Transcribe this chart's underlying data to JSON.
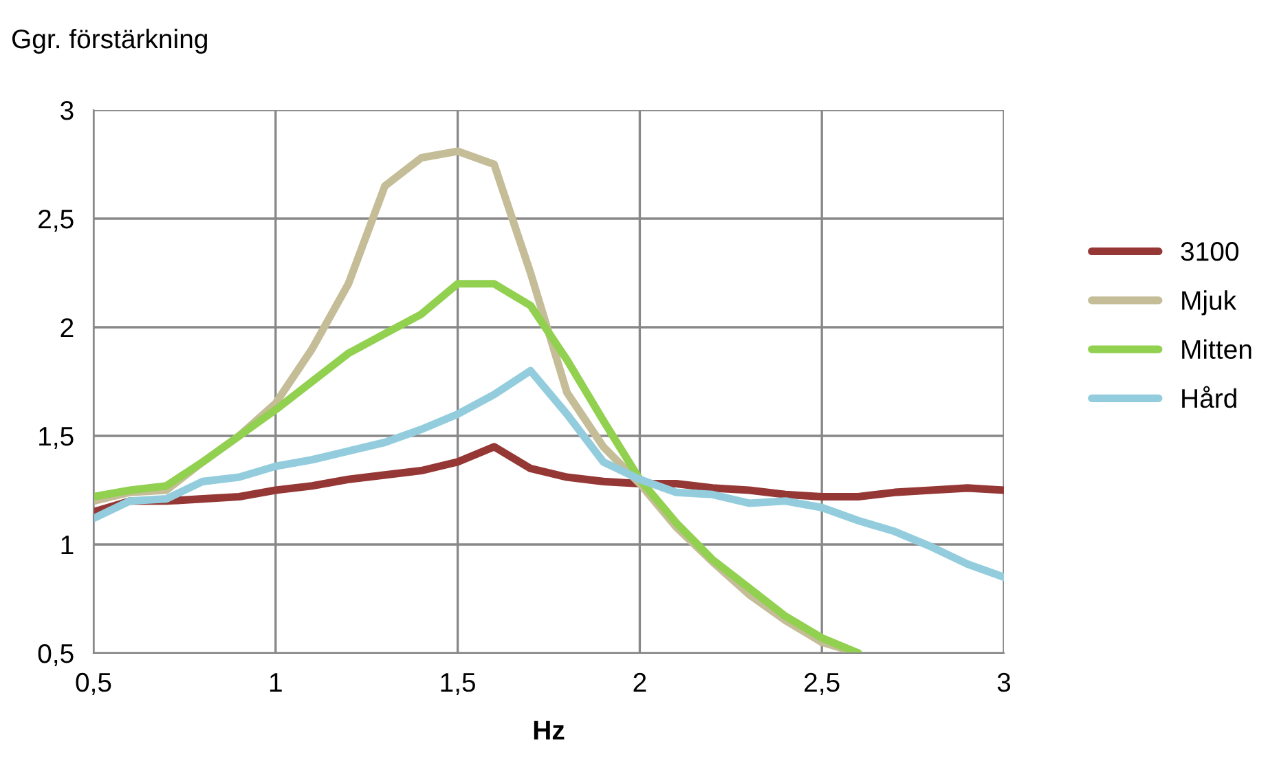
{
  "chart_data": {
    "type": "line",
    "ylabel": "Ggr. förstärkning",
    "xlabel": "Hz",
    "x": [
      0.5,
      0.6,
      0.7,
      0.8,
      0.9,
      1.0,
      1.1,
      1.2,
      1.3,
      1.4,
      1.5,
      1.6,
      1.7,
      1.8,
      1.9,
      2.0,
      2.1,
      2.2,
      2.3,
      2.4,
      2.5,
      2.6,
      2.7,
      2.8,
      2.9,
      3.0
    ],
    "series": [
      {
        "name": "3100",
        "color": "#953735",
        "values": [
          1.15,
          1.2,
          1.2,
          1.21,
          1.22,
          1.25,
          1.27,
          1.3,
          1.32,
          1.34,
          1.38,
          1.45,
          1.35,
          1.31,
          1.29,
          1.28,
          1.28,
          1.26,
          1.25,
          1.23,
          1.22,
          1.22,
          1.24,
          1.25,
          1.26,
          1.25
        ]
      },
      {
        "name": "Mjuk",
        "color": "#c4bd97",
        "values": [
          1.2,
          1.24,
          1.25,
          1.38,
          1.5,
          1.65,
          1.9,
          2.2,
          2.65,
          2.78,
          2.81,
          2.75,
          2.25,
          1.7,
          1.45,
          1.28,
          1.08,
          0.92,
          0.77,
          0.65,
          0.55,
          0.5,
          null,
          null,
          null,
          null
        ]
      },
      {
        "name": "Mitten",
        "color": "#92d050",
        "values": [
          1.22,
          1.25,
          1.27,
          1.38,
          1.5,
          1.62,
          1.75,
          1.88,
          1.97,
          2.06,
          2.2,
          2.2,
          2.1,
          1.85,
          1.57,
          1.3,
          1.1,
          0.93,
          0.8,
          0.67,
          0.57,
          0.5,
          null,
          null,
          null,
          null
        ]
      },
      {
        "name": "Hård",
        "color": "#93cddd",
        "values": [
          1.12,
          1.2,
          1.21,
          1.29,
          1.31,
          1.36,
          1.39,
          1.43,
          1.47,
          1.53,
          1.6,
          1.69,
          1.8,
          1.6,
          1.38,
          1.3,
          1.24,
          1.23,
          1.19,
          1.2,
          1.17,
          1.11,
          1.06,
          0.99,
          0.91,
          0.85
        ]
      }
    ],
    "xlim": [
      0.5,
      3
    ],
    "xticks": [
      {
        "value": 0.5,
        "label": "0,5"
      },
      1,
      {
        "value": 1.5,
        "label": "1,5"
      },
      2,
      {
        "value": 2.5,
        "label": "2,5"
      },
      3
    ],
    "ylim": [
      0.5,
      3
    ],
    "yticks": [
      {
        "value": 0.5,
        "label": "0,5"
      },
      1,
      {
        "value": 1.5,
        "label": "1,5"
      },
      2,
      {
        "value": 2.5,
        "label": "2,5"
      },
      3
    ],
    "grid": true,
    "legend": "right",
    "marker": "none",
    "line_style": "solid"
  }
}
